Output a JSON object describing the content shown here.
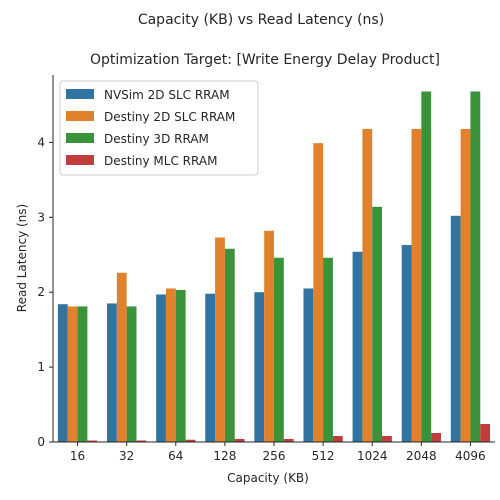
{
  "chart_data": {
    "type": "bar",
    "title": "Capacity (KB) vs Read Latency (ns)",
    "subtitle": "Optimization Target: [Write Energy Delay Product]",
    "xlabel": "Capacity (KB)",
    "ylabel": "Read Latency (ns)",
    "categories": [
      "16",
      "32",
      "64",
      "128",
      "256",
      "512",
      "1024",
      "2048",
      "4096"
    ],
    "ylim": [
      0,
      4.9
    ],
    "yticks": [
      0,
      1,
      2,
      3,
      4
    ],
    "ytick_labels": [
      "0",
      "1",
      "2",
      "3",
      "4"
    ],
    "grid": false,
    "legend_position": "top-left",
    "series": [
      {
        "name": "NVSim 2D SLC RRAM",
        "color": "#3274a1",
        "values": [
          1.84,
          1.85,
          1.97,
          1.98,
          2.0,
          2.05,
          2.54,
          2.63,
          3.02
        ]
      },
      {
        "name": "Destiny 2D SLC RRAM",
        "color": "#e1812c",
        "values": [
          1.81,
          2.26,
          2.05,
          2.73,
          2.82,
          3.99,
          4.18,
          4.18,
          4.18
        ]
      },
      {
        "name": "Destiny 3D RRAM",
        "color": "#3a923a",
        "values": [
          1.81,
          1.81,
          2.03,
          2.58,
          2.46,
          2.46,
          3.14,
          4.68,
          4.68
        ]
      },
      {
        "name": "Destiny MLC RRAM",
        "color": "#c03d3e",
        "values": [
          0.02,
          0.02,
          0.03,
          0.04,
          0.04,
          0.08,
          0.08,
          0.12,
          0.24
        ]
      }
    ]
  }
}
